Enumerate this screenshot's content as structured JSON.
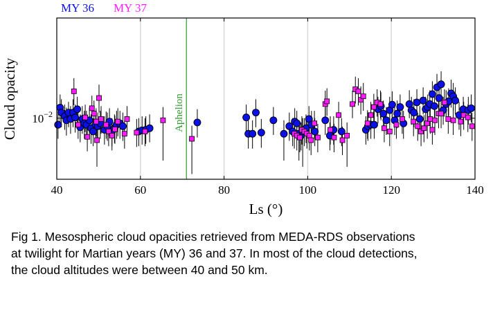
{
  "chart_data": {
    "type": "scatter",
    "title": "",
    "xlabel": "Ls (°)",
    "ylabel": "Cloud opacity",
    "xlim": [
      40,
      140
    ],
    "yscale": "log",
    "ylim": [
      0.0022,
      0.12
    ],
    "x_ticks": [
      40,
      60,
      80,
      100,
      120,
      140
    ],
    "y_ticks": [
      {
        "value": 0.01,
        "label_base": "10",
        "label_exp": "−2"
      }
    ],
    "grid": "vertical",
    "legend": {
      "placement": "top-left-outside",
      "entries": [
        "MY 36",
        "MY 37"
      ]
    },
    "annotations": [
      {
        "text": "Aphelion",
        "x": 71,
        "color": "#2e9a2e"
      }
    ],
    "series": [
      {
        "name": "MY 36",
        "marker": "circle",
        "color": "#0a10e6",
        "points": [
          [
            40.3,
            0.0085,
            0.006,
            0.012
          ],
          [
            40.8,
            0.013,
            0.009,
            0.018
          ],
          [
            41.1,
            0.0115,
            0.008,
            0.016
          ],
          [
            41.9,
            0.0105,
            0.0075,
            0.014
          ],
          [
            42.3,
            0.0095,
            0.0065,
            0.013
          ],
          [
            42.8,
            0.0115,
            0.008,
            0.015
          ],
          [
            43.3,
            0.0098,
            0.0068,
            0.0135
          ],
          [
            43.9,
            0.0115,
            0.008,
            0.016
          ],
          [
            44.4,
            0.0102,
            0.007,
            0.014
          ],
          [
            44.9,
            0.0125,
            0.0088,
            0.017
          ],
          [
            45.6,
            0.008,
            0.0055,
            0.011
          ],
          [
            46.1,
            0.0098,
            0.0068,
            0.0135
          ],
          [
            46.6,
            0.0088,
            0.006,
            0.012
          ],
          [
            47.1,
            0.0085,
            0.006,
            0.012
          ],
          [
            47.8,
            0.0095,
            0.0065,
            0.013
          ],
          [
            48.2,
            0.0078,
            0.0053,
            0.011
          ],
          [
            48.7,
            0.0072,
            0.005,
            0.01
          ],
          [
            49.3,
            0.0085,
            0.006,
            0.012
          ],
          [
            49.8,
            0.0082,
            0.0057,
            0.0115
          ],
          [
            50.4,
            0.0088,
            0.006,
            0.012
          ],
          [
            51.4,
            0.0075,
            0.0052,
            0.0105
          ],
          [
            52.1,
            0.0082,
            0.0057,
            0.0115
          ],
          [
            52.6,
            0.0092,
            0.0064,
            0.0128
          ],
          [
            53.2,
            0.0072,
            0.005,
            0.01
          ],
          [
            53.8,
            0.0078,
            0.0054,
            0.011
          ],
          [
            54.3,
            0.0085,
            0.006,
            0.012
          ],
          [
            55.1,
            0.0088,
            0.006,
            0.012
          ],
          [
            55.8,
            0.0082,
            0.0057,
            0.0115
          ],
          [
            59.6,
            0.0072,
            0.005,
            0.01
          ],
          [
            60.4,
            0.0074,
            0.0052,
            0.0105
          ],
          [
            61.3,
            0.0075,
            0.0053,
            0.0105
          ],
          [
            62.2,
            0.0078,
            0.0055,
            0.011
          ],
          [
            73.6,
            0.009,
            0.0062,
            0.0125
          ],
          [
            85.3,
            0.0102,
            0.007,
            0.014
          ],
          [
            85.8,
            0.0068,
            0.0047,
            0.0095
          ],
          [
            86.8,
            0.0068,
            0.0047,
            0.0095
          ],
          [
            87.6,
            0.0115,
            0.008,
            0.016
          ],
          [
            88.9,
            0.007,
            0.0048,
            0.0098
          ],
          [
            91.8,
            0.0095,
            0.0066,
            0.0132
          ],
          [
            94.3,
            0.0068,
            0.0035,
            0.0095
          ],
          [
            95.6,
            0.0082,
            0.0057,
            0.0115
          ],
          [
            96.4,
            0.0072,
            0.005,
            0.01
          ],
          [
            96.9,
            0.0092,
            0.0064,
            0.0128
          ],
          [
            97.4,
            0.0088,
            0.006,
            0.012
          ],
          [
            97.9,
            0.0068,
            0.0035,
            0.0095
          ],
          [
            98.4,
            0.0065,
            0.0045,
            0.009
          ],
          [
            98.8,
            0.0072,
            0.003,
            0.01
          ],
          [
            99.6,
            0.0078,
            0.0054,
            0.011
          ],
          [
            100.3,
            0.0098,
            0.0068,
            0.0135
          ],
          [
            100.9,
            0.0085,
            0.006,
            0.012
          ],
          [
            101.7,
            0.0072,
            0.005,
            0.01
          ],
          [
            104.2,
            0.0095,
            0.0066,
            0.0132
          ],
          [
            105.3,
            0.0065,
            0.0045,
            0.009
          ],
          [
            106.2,
            0.0075,
            0.0052,
            0.0105
          ],
          [
            108.1,
            0.0072,
            0.005,
            0.01
          ],
          [
            113.9,
            0.0075,
            0.0052,
            0.0105
          ],
          [
            114.4,
            0.0082,
            0.0057,
            0.0115
          ],
          [
            115.1,
            0.0085,
            0.006,
            0.012
          ],
          [
            115.9,
            0.0085,
            0.006,
            0.012
          ],
          [
            116.8,
            0.0125,
            0.0088,
            0.017
          ],
          [
            117.5,
            0.0135,
            0.0095,
            0.019
          ],
          [
            118.1,
            0.0112,
            0.0078,
            0.0155
          ],
          [
            118.8,
            0.0095,
            0.0066,
            0.0132
          ],
          [
            119.6,
            0.0122,
            0.0085,
            0.017
          ],
          [
            120.2,
            0.014,
            0.0098,
            0.0195
          ],
          [
            120.8,
            0.0095,
            0.0066,
            0.0132
          ],
          [
            121.4,
            0.0112,
            0.0078,
            0.0155
          ],
          [
            122.1,
            0.0132,
            0.0092,
            0.018
          ],
          [
            122.9,
            0.0088,
            0.006,
            0.012
          ],
          [
            124.3,
            0.0142,
            0.01,
            0.02
          ],
          [
            124.8,
            0.0122,
            0.0085,
            0.017
          ],
          [
            125.4,
            0.0115,
            0.008,
            0.016
          ],
          [
            126.1,
            0.0148,
            0.0104,
            0.0205
          ],
          [
            126.8,
            0.0098,
            0.0068,
            0.0135
          ],
          [
            127.6,
            0.0155,
            0.011,
            0.0215
          ],
          [
            128.2,
            0.0125,
            0.0088,
            0.017
          ],
          [
            128.7,
            0.0132,
            0.0092,
            0.018
          ],
          [
            129.2,
            0.0142,
            0.01,
            0.02
          ],
          [
            129.8,
            0.0182,
            0.013,
            0.025
          ],
          [
            130.3,
            0.0135,
            0.0095,
            0.019
          ],
          [
            130.9,
            0.0215,
            0.015,
            0.03
          ],
          [
            131.4,
            0.0165,
            0.0115,
            0.023
          ],
          [
            131.9,
            0.0232,
            0.016,
            0.032
          ],
          [
            132.4,
            0.0122,
            0.0085,
            0.017
          ],
          [
            133.1,
            0.0142,
            0.01,
            0.02
          ],
          [
            133.7,
            0.0152,
            0.0106,
            0.021
          ],
          [
            134.3,
            0.0185,
            0.013,
            0.026
          ],
          [
            134.8,
            0.0172,
            0.012,
            0.024
          ],
          [
            135.3,
            0.0155,
            0.011,
            0.0215
          ],
          [
            136.2,
            0.0108,
            0.0075,
            0.015
          ],
          [
            137.2,
            0.0125,
            0.0088,
            0.017
          ],
          [
            138.4,
            0.0122,
            0.0085,
            0.017
          ],
          [
            139.1,
            0.0128,
            0.009,
            0.018
          ]
        ]
      },
      {
        "name": "MY 37",
        "marker": "square",
        "color": "#ff1aff",
        "points": [
          [
            44.1,
            0.0195,
            0.0138,
            0.027
          ],
          [
            45.1,
            0.0085,
            0.006,
            0.0118
          ],
          [
            46.8,
            0.0102,
            0.0071,
            0.014
          ],
          [
            47.3,
            0.0063,
            0.0044,
            0.0088
          ],
          [
            48.4,
            0.0128,
            0.009,
            0.0175
          ],
          [
            48.9,
            0.0112,
            0.0078,
            0.0155
          ],
          [
            49.4,
            0.0092,
            0.0064,
            0.0128
          ],
          [
            49.6,
            0.0058,
            0.003,
            0.0082
          ],
          [
            50.1,
            0.0165,
            0.0115,
            0.023
          ],
          [
            50.6,
            0.0098,
            0.0068,
            0.0135
          ],
          [
            51.8,
            0.0085,
            0.006,
            0.0118
          ],
          [
            52.4,
            0.0072,
            0.005,
            0.01
          ],
          [
            53.2,
            0.0065,
            0.0045,
            0.009
          ],
          [
            53.9,
            0.0076,
            0.0053,
            0.0106
          ],
          [
            54.6,
            0.0092,
            0.0064,
            0.0128
          ],
          [
            56.2,
            0.0068,
            0.0047,
            0.0095
          ],
          [
            56.8,
            0.0098,
            0.0068,
            0.0135
          ],
          [
            59.1,
            0.007,
            0.0049,
            0.0098
          ],
          [
            61.1,
            0.0072,
            0.005,
            0.01
          ],
          [
            65.4,
            0.0095,
            0.0035,
            0.0132
          ],
          [
            72.3,
            0.006,
            0.0025,
            0.0083
          ],
          [
            96.8,
            0.0068,
            0.0047,
            0.0095
          ],
          [
            97.4,
            0.0065,
            0.0045,
            0.009
          ],
          [
            98.1,
            0.0062,
            0.0043,
            0.0087
          ],
          [
            98.6,
            0.0075,
            0.0052,
            0.0105
          ],
          [
            99.2,
            0.0072,
            0.005,
            0.01
          ],
          [
            99.8,
            0.0068,
            0.0047,
            0.0095
          ],
          [
            100.4,
            0.0065,
            0.0045,
            0.009
          ],
          [
            100.8,
            0.0058,
            0.004,
            0.0081
          ],
          [
            101.6,
            0.0088,
            0.006,
            0.012
          ],
          [
            102.4,
            0.0062,
            0.0043,
            0.0087
          ],
          [
            104.2,
            0.0142,
            0.01,
            0.0198
          ],
          [
            104.6,
            0.0152,
            0.0106,
            0.021
          ],
          [
            105.4,
            0.0075,
            0.0052,
            0.0105
          ],
          [
            106.3,
            0.0062,
            0.0043,
            0.0087
          ],
          [
            107.4,
            0.0108,
            0.0075,
            0.015
          ],
          [
            108.3,
            0.0058,
            0.004,
            0.0081
          ],
          [
            109.4,
            0.0065,
            0.003,
            0.009
          ],
          [
            110.7,
            0.0142,
            0.01,
            0.0198
          ],
          [
            111.4,
            0.0205,
            0.0144,
            0.028
          ],
          [
            112.1,
            0.0195,
            0.0137,
            0.027
          ],
          [
            112.7,
            0.0158,
            0.011,
            0.022
          ],
          [
            113.3,
            0.0172,
            0.012,
            0.024
          ],
          [
            114.3,
            0.0088,
            0.006,
            0.0122
          ],
          [
            115.1,
            0.0108,
            0.0075,
            0.015
          ],
          [
            115.8,
            0.0132,
            0.0092,
            0.0183
          ],
          [
            116.6,
            0.0148,
            0.0104,
            0.0205
          ],
          [
            117.4,
            0.0142,
            0.01,
            0.0198
          ],
          [
            118.3,
            0.0078,
            0.0055,
            0.0108
          ],
          [
            119.6,
            0.0072,
            0.005,
            0.01
          ],
          [
            121.2,
            0.0085,
            0.006,
            0.0118
          ],
          [
            122.6,
            0.0098,
            0.0068,
            0.0135
          ],
          [
            125.3,
            0.0092,
            0.0064,
            0.0128
          ],
          [
            126.3,
            0.0082,
            0.0057,
            0.0114
          ],
          [
            127.1,
            0.0072,
            0.005,
            0.01
          ],
          [
            127.8,
            0.0078,
            0.0055,
            0.0108
          ],
          [
            128.6,
            0.0088,
            0.006,
            0.0122
          ],
          [
            129.3,
            0.0098,
            0.0068,
            0.0135
          ],
          [
            129.8,
            0.0075,
            0.0052,
            0.0105
          ],
          [
            130.4,
            0.0095,
            0.0066,
            0.0132
          ],
          [
            131.3,
            0.0112,
            0.0078,
            0.0155
          ],
          [
            131.9,
            0.0112,
            0.0078,
            0.0155
          ],
          [
            132.7,
            0.0148,
            0.0104,
            0.0205
          ],
          [
            133.6,
            0.0098,
            0.0068,
            0.0135
          ],
          [
            134.8,
            0.0095,
            0.0066,
            0.0132
          ],
          [
            136.6,
            0.0092,
            0.0064,
            0.0128
          ],
          [
            137.3,
            0.0108,
            0.0075,
            0.015
          ],
          [
            138.3,
            0.0102,
            0.0071,
            0.014
          ],
          [
            139.3,
            0.0082,
            0.0057,
            0.0114
          ]
        ]
      }
    ]
  },
  "caption": {
    "lines": [
      "Fig 1. Mesospheric cloud opacities retrieved from MEDA-RDS observations",
      "at twilight for Martian years (MY) 36 and 37. In most of the cloud detections,",
      "the cloud altitudes were between 40 and 50 km."
    ]
  }
}
